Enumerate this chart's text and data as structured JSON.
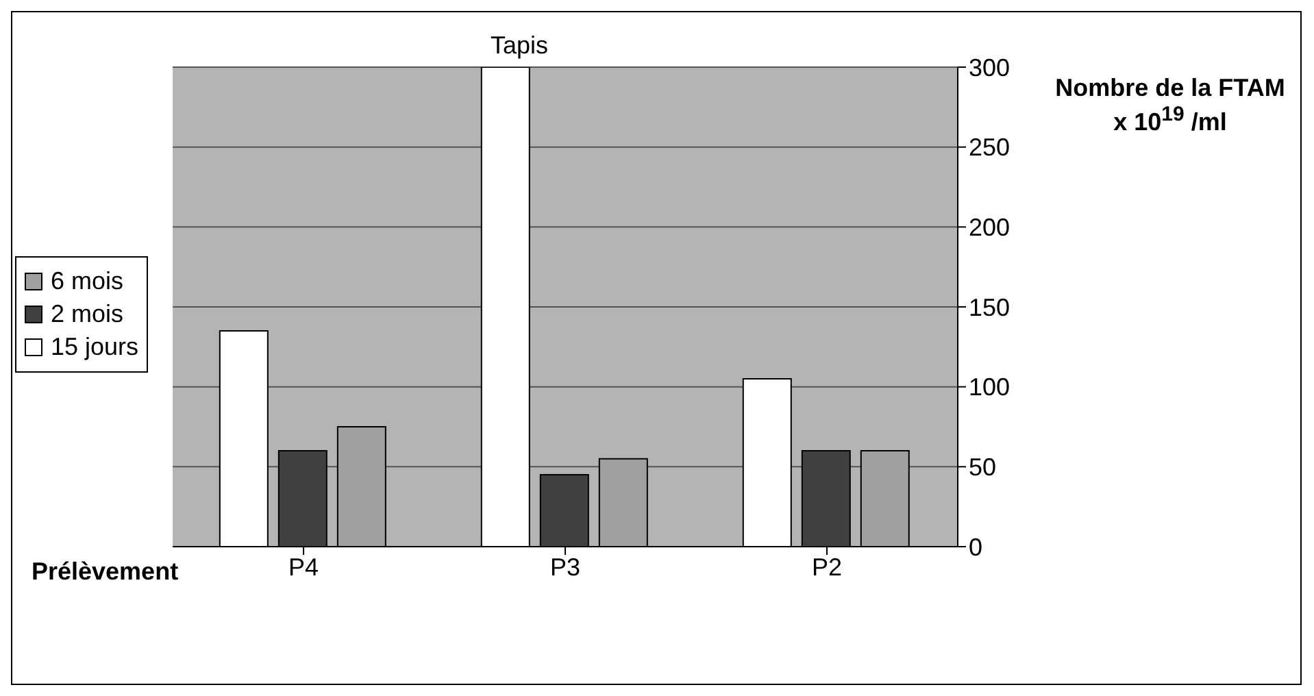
{
  "chart_data": {
    "type": "bar",
    "title": "Tapis",
    "xlabel": "Prélèvement",
    "ylabel": "Nombre de la FTAM x 10$^{19}$ /ml",
    "categories": [
      "P4",
      "P3",
      "P2"
    ],
    "series": [
      {
        "name": "15 jours",
        "color": "#ffffff",
        "values": [
          135,
          300,
          105
        ]
      },
      {
        "name": "2 mois",
        "color": "#404040",
        "values": [
          60,
          45,
          60
        ]
      },
      {
        "name": "6 mois",
        "color": "#a0a0a0",
        "values": [
          75,
          55,
          60
        ]
      }
    ],
    "ylim": [
      0,
      300
    ],
    "yticks": [
      0,
      50,
      100,
      150,
      200,
      250,
      300
    ],
    "grid": "y",
    "legend": "left"
  }
}
